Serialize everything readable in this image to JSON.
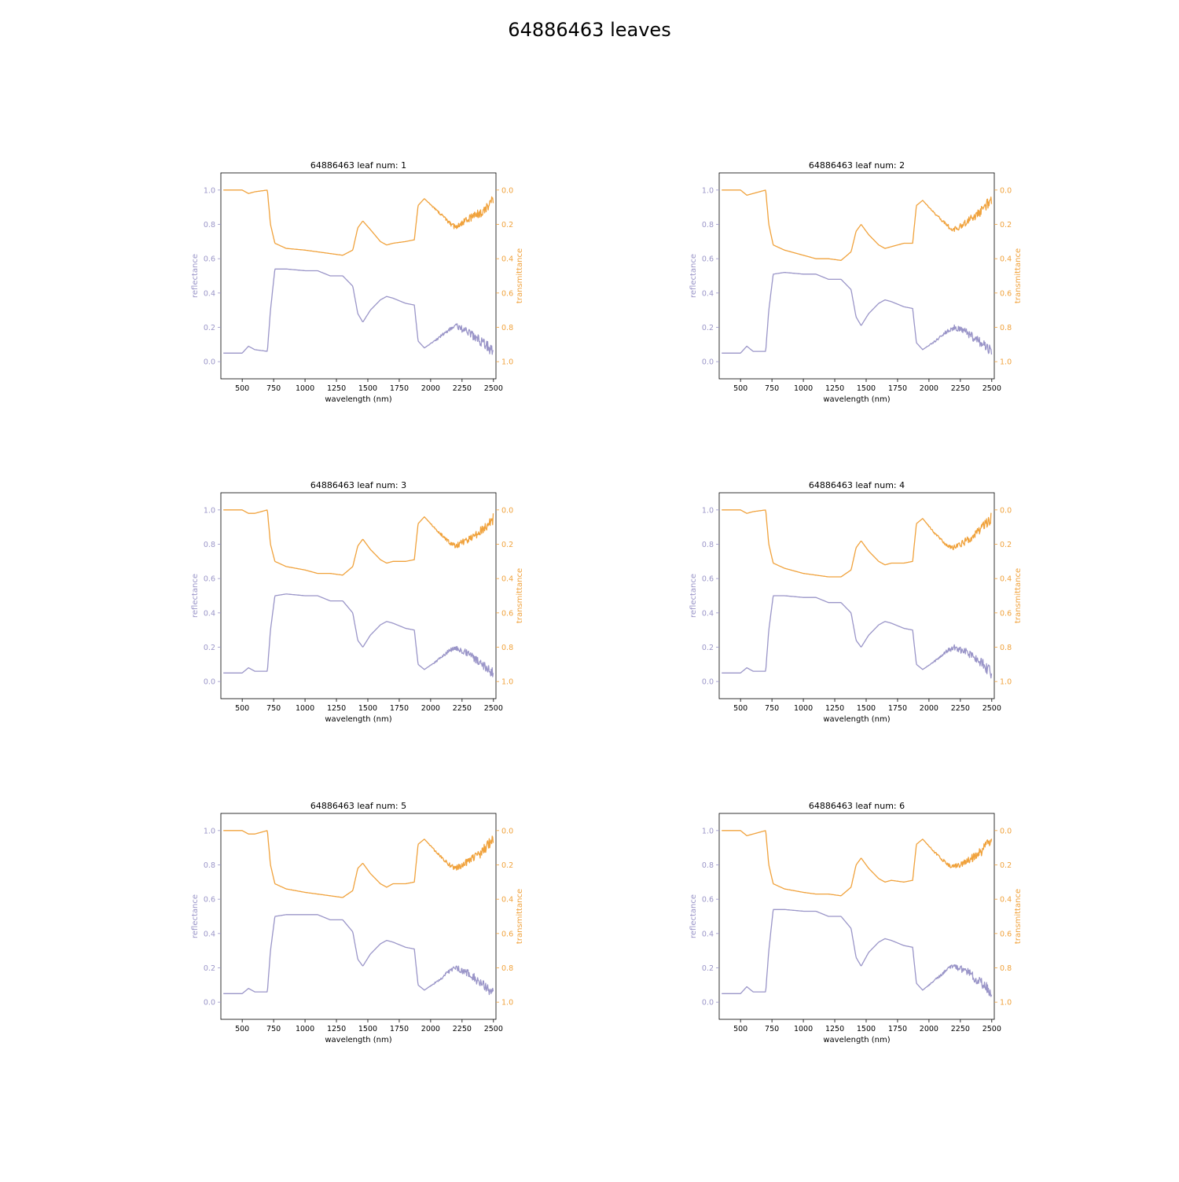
{
  "figure": {
    "title": "64886463 leaves",
    "xlabel": "wavelength (nm)",
    "ylabel_left": "reflectance",
    "ylabel_right": "transmittance",
    "colors": {
      "reflectance": "#9a95c8",
      "transmittance": "#f0a23c"
    }
  },
  "chart_data": [
    {
      "type": "line",
      "title": "64886463 leaf num: 1",
      "xlabel": "wavelength (nm)",
      "ylabel": "reflectance",
      "y2label": "transmittance",
      "xlim": [
        330,
        2520
      ],
      "ylim": [
        -0.1,
        1.1
      ],
      "y2lim": [
        1.1,
        -0.1
      ],
      "y2_inverted": true,
      "xticks": [
        500,
        750,
        1000,
        1250,
        1500,
        1750,
        2000,
        2250,
        2500
      ],
      "yticks": [
        0.0,
        0.2,
        0.4,
        0.6,
        0.8,
        1.0
      ],
      "y2ticks": [
        0.0,
        0.2,
        0.4,
        0.6,
        0.8,
        1.0
      ],
      "series": [
        {
          "name": "reflectance",
          "axis": "left",
          "color": "#9a95c8",
          "x": [
            350,
            500,
            550,
            600,
            700,
            725,
            760,
            850,
            1000,
            1100,
            1200,
            1300,
            1380,
            1420,
            1460,
            1520,
            1600,
            1650,
            1700,
            1800,
            1870,
            1900,
            1950,
            2050,
            2150,
            2200,
            2300,
            2400,
            2500
          ],
          "y": [
            0.05,
            0.05,
            0.09,
            0.07,
            0.06,
            0.3,
            0.54,
            0.54,
            0.53,
            0.53,
            0.5,
            0.5,
            0.44,
            0.28,
            0.23,
            0.3,
            0.36,
            0.38,
            0.37,
            0.34,
            0.33,
            0.12,
            0.08,
            0.13,
            0.19,
            0.21,
            0.17,
            0.12,
            0.06
          ]
        },
        {
          "name": "transmittance",
          "axis": "right",
          "color": "#f0a23c",
          "x": [
            350,
            500,
            550,
            600,
            700,
            725,
            760,
            850,
            1000,
            1100,
            1200,
            1300,
            1380,
            1420,
            1460,
            1520,
            1600,
            1650,
            1700,
            1800,
            1870,
            1900,
            1950,
            2050,
            2150,
            2200,
            2300,
            2400,
            2500
          ],
          "y": [
            0.0,
            0.0,
            0.02,
            0.01,
            0.0,
            0.2,
            0.31,
            0.34,
            0.35,
            0.36,
            0.37,
            0.38,
            0.35,
            0.22,
            0.18,
            0.23,
            0.3,
            0.32,
            0.31,
            0.3,
            0.29,
            0.09,
            0.05,
            0.12,
            0.19,
            0.22,
            0.17,
            0.13,
            0.06
          ]
        }
      ]
    },
    {
      "type": "line",
      "title": "64886463 leaf num: 2",
      "xlabel": "wavelength (nm)",
      "ylabel": "reflectance",
      "y2label": "transmittance",
      "xlim": [
        330,
        2520
      ],
      "ylim": [
        -0.1,
        1.1
      ],
      "y2lim": [
        1.1,
        -0.1
      ],
      "y2_inverted": true,
      "xticks": [
        500,
        750,
        1000,
        1250,
        1500,
        1750,
        2000,
        2250,
        2500
      ],
      "yticks": [
        0.0,
        0.2,
        0.4,
        0.6,
        0.8,
        1.0
      ],
      "y2ticks": [
        0.0,
        0.2,
        0.4,
        0.6,
        0.8,
        1.0
      ],
      "series": [
        {
          "name": "reflectance",
          "axis": "left",
          "color": "#9a95c8",
          "x": [
            350,
            500,
            550,
            600,
            700,
            725,
            760,
            850,
            1000,
            1100,
            1200,
            1300,
            1380,
            1420,
            1460,
            1520,
            1600,
            1650,
            1700,
            1800,
            1870,
            1900,
            1950,
            2050,
            2150,
            2200,
            2300,
            2400,
            2500
          ],
          "y": [
            0.05,
            0.05,
            0.09,
            0.06,
            0.06,
            0.3,
            0.51,
            0.52,
            0.51,
            0.51,
            0.48,
            0.48,
            0.42,
            0.26,
            0.21,
            0.28,
            0.34,
            0.36,
            0.35,
            0.32,
            0.31,
            0.11,
            0.07,
            0.12,
            0.18,
            0.2,
            0.17,
            0.12,
            0.06
          ]
        },
        {
          "name": "transmittance",
          "axis": "right",
          "color": "#f0a23c",
          "x": [
            350,
            500,
            550,
            600,
            700,
            725,
            760,
            850,
            1000,
            1100,
            1200,
            1300,
            1380,
            1420,
            1460,
            1520,
            1600,
            1650,
            1700,
            1800,
            1870,
            1900,
            1950,
            2050,
            2150,
            2200,
            2300,
            2400,
            2500
          ],
          "y": [
            0.0,
            0.0,
            0.03,
            0.02,
            0.0,
            0.2,
            0.32,
            0.35,
            0.38,
            0.4,
            0.4,
            0.41,
            0.36,
            0.24,
            0.2,
            0.26,
            0.32,
            0.34,
            0.33,
            0.31,
            0.31,
            0.09,
            0.06,
            0.14,
            0.21,
            0.23,
            0.19,
            0.13,
            0.06
          ]
        }
      ]
    },
    {
      "type": "line",
      "title": "64886463 leaf num: 3",
      "xlabel": "wavelength (nm)",
      "ylabel": "reflectance",
      "y2label": "transmittance",
      "xlim": [
        330,
        2520
      ],
      "ylim": [
        -0.1,
        1.1
      ],
      "y2lim": [
        1.1,
        -0.1
      ],
      "y2_inverted": true,
      "xticks": [
        500,
        750,
        1000,
        1250,
        1500,
        1750,
        2000,
        2250,
        2500
      ],
      "yticks": [
        0.0,
        0.2,
        0.4,
        0.6,
        0.8,
        1.0
      ],
      "y2ticks": [
        0.0,
        0.2,
        0.4,
        0.6,
        0.8,
        1.0
      ],
      "series": [
        {
          "name": "reflectance",
          "axis": "left",
          "color": "#9a95c8",
          "x": [
            350,
            500,
            550,
            600,
            700,
            725,
            760,
            850,
            1000,
            1100,
            1200,
            1300,
            1380,
            1420,
            1460,
            1520,
            1600,
            1650,
            1700,
            1800,
            1870,
            1900,
            1950,
            2050,
            2150,
            2200,
            2300,
            2400,
            2500
          ],
          "y": [
            0.05,
            0.05,
            0.08,
            0.06,
            0.06,
            0.3,
            0.5,
            0.51,
            0.5,
            0.5,
            0.47,
            0.47,
            0.4,
            0.24,
            0.2,
            0.27,
            0.33,
            0.35,
            0.34,
            0.31,
            0.3,
            0.1,
            0.07,
            0.12,
            0.18,
            0.2,
            0.16,
            0.11,
            0.05
          ]
        },
        {
          "name": "transmittance",
          "axis": "right",
          "color": "#f0a23c",
          "x": [
            350,
            500,
            550,
            600,
            700,
            725,
            760,
            850,
            1000,
            1100,
            1200,
            1300,
            1380,
            1420,
            1460,
            1520,
            1600,
            1650,
            1700,
            1800,
            1870,
            1900,
            1950,
            2050,
            2150,
            2200,
            2300,
            2400,
            2500
          ],
          "y": [
            0.0,
            0.0,
            0.02,
            0.02,
            0.0,
            0.2,
            0.3,
            0.33,
            0.35,
            0.37,
            0.37,
            0.38,
            0.33,
            0.21,
            0.17,
            0.23,
            0.29,
            0.31,
            0.3,
            0.3,
            0.29,
            0.08,
            0.04,
            0.12,
            0.19,
            0.21,
            0.17,
            0.12,
            0.05
          ]
        }
      ]
    },
    {
      "type": "line",
      "title": "64886463 leaf num: 4",
      "xlabel": "wavelength (nm)",
      "ylabel": "reflectance",
      "y2label": "transmittance",
      "xlim": [
        330,
        2520
      ],
      "ylim": [
        -0.1,
        1.1
      ],
      "y2lim": [
        1.1,
        -0.1
      ],
      "y2_inverted": true,
      "xticks": [
        500,
        750,
        1000,
        1250,
        1500,
        1750,
        2000,
        2250,
        2500
      ],
      "yticks": [
        0.0,
        0.2,
        0.4,
        0.6,
        0.8,
        1.0
      ],
      "y2ticks": [
        0.0,
        0.2,
        0.4,
        0.6,
        0.8,
        1.0
      ],
      "series": [
        {
          "name": "reflectance",
          "axis": "left",
          "color": "#9a95c8",
          "x": [
            350,
            500,
            550,
            600,
            700,
            725,
            760,
            850,
            1000,
            1100,
            1200,
            1300,
            1380,
            1420,
            1460,
            1520,
            1600,
            1650,
            1700,
            1800,
            1870,
            1900,
            1950,
            2050,
            2150,
            2200,
            2300,
            2400,
            2500
          ],
          "y": [
            0.05,
            0.05,
            0.08,
            0.06,
            0.06,
            0.3,
            0.5,
            0.5,
            0.49,
            0.49,
            0.46,
            0.46,
            0.4,
            0.24,
            0.2,
            0.27,
            0.33,
            0.35,
            0.34,
            0.31,
            0.3,
            0.1,
            0.07,
            0.12,
            0.18,
            0.2,
            0.17,
            0.12,
            0.05
          ]
        },
        {
          "name": "transmittance",
          "axis": "right",
          "color": "#f0a23c",
          "x": [
            350,
            500,
            550,
            600,
            700,
            725,
            760,
            850,
            1000,
            1100,
            1200,
            1300,
            1380,
            1420,
            1460,
            1520,
            1600,
            1650,
            1700,
            1800,
            1870,
            1900,
            1950,
            2050,
            2150,
            2200,
            2300,
            2400,
            2500
          ],
          "y": [
            0.0,
            0.0,
            0.02,
            0.01,
            0.0,
            0.2,
            0.31,
            0.34,
            0.37,
            0.38,
            0.39,
            0.39,
            0.35,
            0.22,
            0.18,
            0.24,
            0.3,
            0.32,
            0.31,
            0.31,
            0.3,
            0.08,
            0.05,
            0.14,
            0.21,
            0.22,
            0.18,
            0.12,
            0.05
          ]
        }
      ]
    },
    {
      "type": "line",
      "title": "64886463 leaf num: 5",
      "xlabel": "wavelength (nm)",
      "ylabel": "reflectance",
      "y2label": "transmittance",
      "xlim": [
        330,
        2520
      ],
      "ylim": [
        -0.1,
        1.1
      ],
      "y2lim": [
        1.1,
        -0.1
      ],
      "y2_inverted": true,
      "xticks": [
        500,
        750,
        1000,
        1250,
        1500,
        1750,
        2000,
        2250,
        2500
      ],
      "yticks": [
        0.0,
        0.2,
        0.4,
        0.6,
        0.8,
        1.0
      ],
      "y2ticks": [
        0.0,
        0.2,
        0.4,
        0.6,
        0.8,
        1.0
      ],
      "series": [
        {
          "name": "reflectance",
          "axis": "left",
          "color": "#9a95c8",
          "x": [
            350,
            500,
            550,
            600,
            700,
            725,
            760,
            850,
            1000,
            1100,
            1200,
            1300,
            1380,
            1420,
            1460,
            1520,
            1600,
            1650,
            1700,
            1800,
            1870,
            1900,
            1950,
            2050,
            2150,
            2200,
            2300,
            2400,
            2500
          ],
          "y": [
            0.05,
            0.05,
            0.08,
            0.06,
            0.06,
            0.3,
            0.5,
            0.51,
            0.51,
            0.51,
            0.48,
            0.48,
            0.41,
            0.25,
            0.21,
            0.28,
            0.34,
            0.36,
            0.35,
            0.32,
            0.31,
            0.1,
            0.07,
            0.12,
            0.18,
            0.2,
            0.17,
            0.11,
            0.05
          ]
        },
        {
          "name": "transmittance",
          "axis": "right",
          "color": "#f0a23c",
          "x": [
            350,
            500,
            550,
            600,
            700,
            725,
            760,
            850,
            1000,
            1100,
            1200,
            1300,
            1380,
            1420,
            1460,
            1520,
            1600,
            1650,
            1700,
            1800,
            1870,
            1900,
            1950,
            2050,
            2150,
            2200,
            2300,
            2400,
            2500
          ],
          "y": [
            0.0,
            0.0,
            0.02,
            0.02,
            0.0,
            0.2,
            0.31,
            0.34,
            0.36,
            0.37,
            0.38,
            0.39,
            0.35,
            0.22,
            0.19,
            0.25,
            0.31,
            0.33,
            0.31,
            0.31,
            0.3,
            0.08,
            0.05,
            0.13,
            0.2,
            0.22,
            0.18,
            0.13,
            0.05
          ]
        }
      ]
    },
    {
      "type": "line",
      "title": "64886463 leaf num: 6",
      "xlabel": "wavelength (nm)",
      "ylabel": "reflectance",
      "y2label": "transmittance",
      "xlim": [
        330,
        2520
      ],
      "ylim": [
        -0.1,
        1.1
      ],
      "y2lim": [
        1.1,
        -0.1
      ],
      "y2_inverted": true,
      "xticks": [
        500,
        750,
        1000,
        1250,
        1500,
        1750,
        2000,
        2250,
        2500
      ],
      "yticks": [
        0.0,
        0.2,
        0.4,
        0.6,
        0.8,
        1.0
      ],
      "y2ticks": [
        0.0,
        0.2,
        0.4,
        0.6,
        0.8,
        1.0
      ],
      "series": [
        {
          "name": "reflectance",
          "axis": "left",
          "color": "#9a95c8",
          "x": [
            350,
            500,
            550,
            600,
            700,
            725,
            760,
            850,
            1000,
            1100,
            1200,
            1300,
            1380,
            1420,
            1460,
            1520,
            1600,
            1650,
            1700,
            1800,
            1870,
            1900,
            1950,
            2050,
            2150,
            2200,
            2300,
            2400,
            2500
          ],
          "y": [
            0.05,
            0.05,
            0.09,
            0.06,
            0.06,
            0.3,
            0.54,
            0.54,
            0.53,
            0.53,
            0.5,
            0.5,
            0.43,
            0.26,
            0.21,
            0.29,
            0.35,
            0.37,
            0.36,
            0.33,
            0.32,
            0.11,
            0.07,
            0.13,
            0.19,
            0.21,
            0.18,
            0.12,
            0.06
          ]
        },
        {
          "name": "transmittance",
          "axis": "right",
          "color": "#f0a23c",
          "x": [
            350,
            500,
            550,
            600,
            700,
            725,
            760,
            850,
            1000,
            1100,
            1200,
            1300,
            1380,
            1420,
            1460,
            1520,
            1600,
            1650,
            1700,
            1800,
            1870,
            1900,
            1950,
            2050,
            2150,
            2200,
            2300,
            2400,
            2500
          ],
          "y": [
            0.0,
            0.0,
            0.03,
            0.02,
            0.0,
            0.2,
            0.31,
            0.34,
            0.36,
            0.37,
            0.37,
            0.38,
            0.33,
            0.2,
            0.16,
            0.22,
            0.28,
            0.3,
            0.29,
            0.3,
            0.29,
            0.08,
            0.05,
            0.13,
            0.2,
            0.21,
            0.18,
            0.13,
            0.06
          ]
        }
      ]
    }
  ]
}
